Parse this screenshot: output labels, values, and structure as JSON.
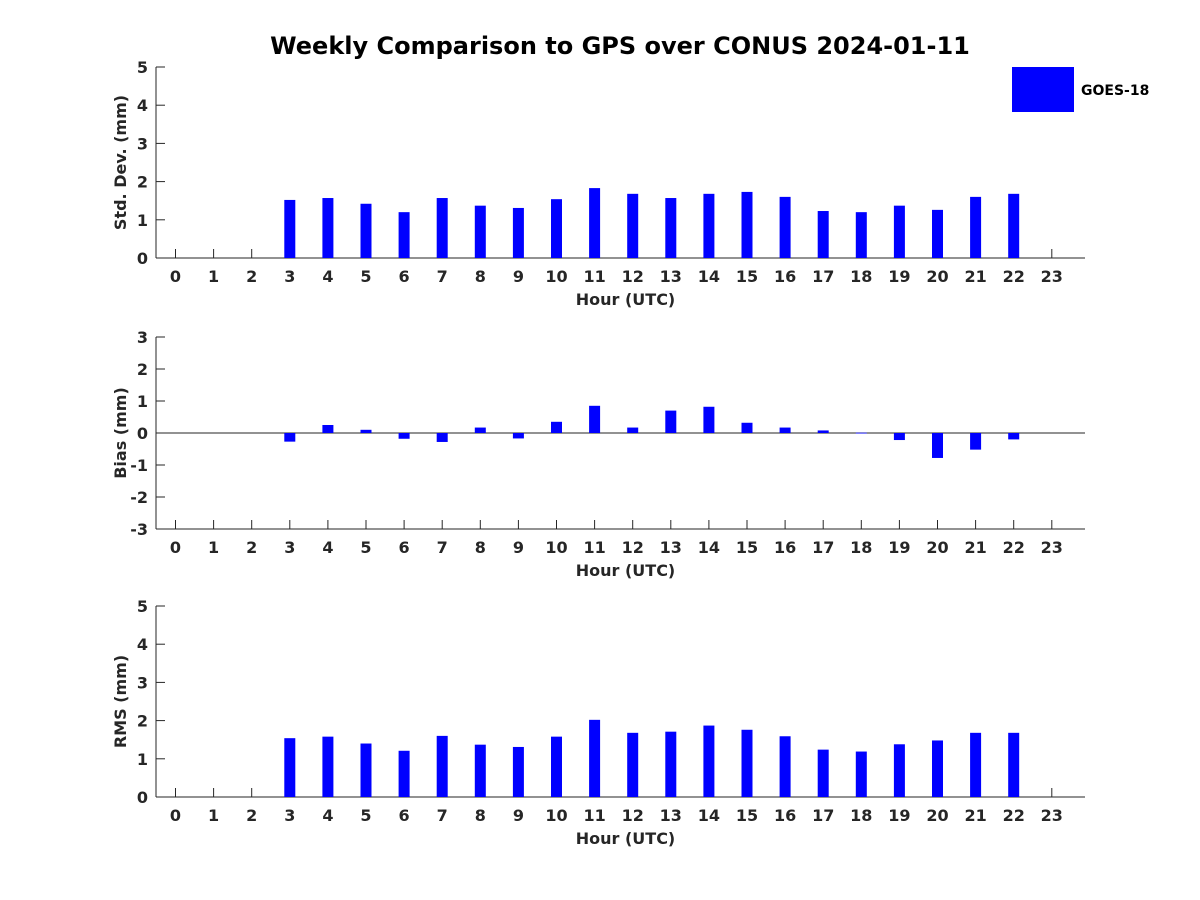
{
  "title": "Weekly Comparison to GPS over CONUS 2024-01-11",
  "legend": {
    "label": "GOES-18",
    "color": "#0000ff",
    "placement": "top-right"
  },
  "chart_data": [
    {
      "type": "bar",
      "xlabel": "Hour (UTC)",
      "ylabel": "Std. Dev. (mm)",
      "ylim": [
        0,
        5
      ],
      "yticks": [
        0,
        1,
        2,
        3,
        4,
        5
      ],
      "categories": [
        "0",
        "1",
        "2",
        "3",
        "4",
        "5",
        "6",
        "7",
        "8",
        "9",
        "10",
        "11",
        "12",
        "13",
        "14",
        "15",
        "16",
        "17",
        "18",
        "19",
        "20",
        "21",
        "22",
        "23"
      ],
      "series": [
        {
          "name": "GOES-18",
          "values": [
            null,
            null,
            null,
            1.52,
            1.57,
            1.42,
            1.2,
            1.57,
            1.37,
            1.31,
            1.54,
            1.83,
            1.68,
            1.57,
            1.68,
            1.73,
            1.6,
            1.23,
            1.2,
            1.37,
            1.26,
            1.6,
            1.68,
            null
          ]
        }
      ]
    },
    {
      "type": "bar",
      "xlabel": "Hour (UTC)",
      "ylabel": "Bias (mm)",
      "ylim": [
        -3,
        3
      ],
      "yticks": [
        -3,
        -2,
        -1,
        0,
        1,
        2,
        3
      ],
      "categories": [
        "0",
        "1",
        "2",
        "3",
        "4",
        "5",
        "6",
        "7",
        "8",
        "9",
        "10",
        "11",
        "12",
        "13",
        "14",
        "15",
        "16",
        "17",
        "18",
        "19",
        "20",
        "21",
        "22",
        "23"
      ],
      "series": [
        {
          "name": "GOES-18",
          "values": [
            null,
            null,
            null,
            -0.27,
            0.25,
            0.1,
            -0.18,
            -0.28,
            0.17,
            -0.17,
            0.35,
            0.85,
            0.17,
            0.7,
            0.82,
            0.32,
            0.17,
            0.08,
            0.01,
            -0.22,
            -0.78,
            -0.52,
            -0.2,
            null
          ]
        }
      ]
    },
    {
      "type": "bar",
      "xlabel": "Hour (UTC)",
      "ylabel": "RMS (mm)",
      "ylim": [
        0,
        5
      ],
      "yticks": [
        0,
        1,
        2,
        3,
        4,
        5
      ],
      "categories": [
        "0",
        "1",
        "2",
        "3",
        "4",
        "5",
        "6",
        "7",
        "8",
        "9",
        "10",
        "11",
        "12",
        "13",
        "14",
        "15",
        "16",
        "17",
        "18",
        "19",
        "20",
        "21",
        "22",
        "23"
      ],
      "series": [
        {
          "name": "GOES-18",
          "values": [
            null,
            null,
            null,
            1.54,
            1.58,
            1.4,
            1.21,
            1.6,
            1.37,
            1.31,
            1.58,
            2.02,
            1.68,
            1.71,
            1.87,
            1.76,
            1.59,
            1.24,
            1.19,
            1.38,
            1.48,
            1.68,
            1.68,
            null
          ]
        }
      ]
    }
  ]
}
